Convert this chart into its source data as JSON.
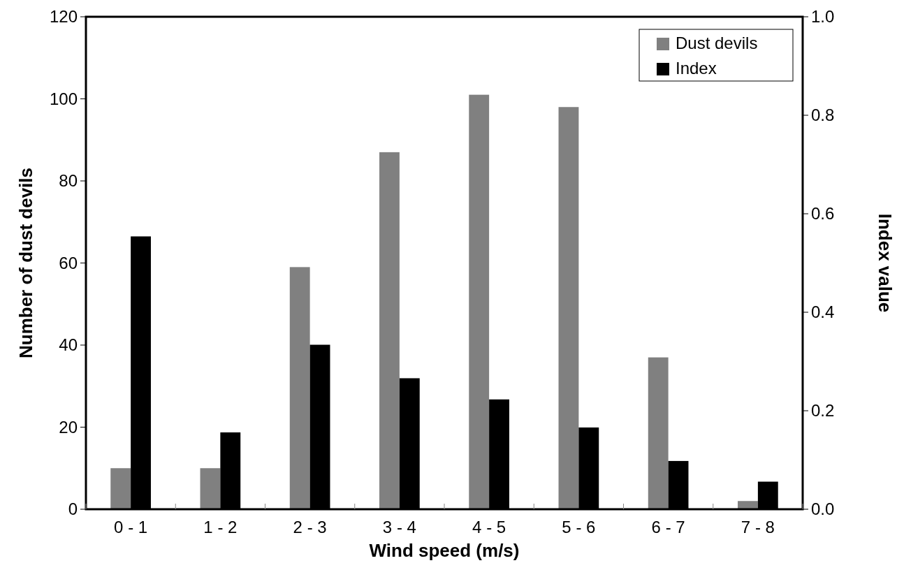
{
  "chart_data": {
    "type": "bar",
    "xlabel": "Wind speed (m/s)",
    "ylabel": "Number of dust devils",
    "y2label": "Index value",
    "categories": [
      "0 - 1",
      "1 - 2",
      "2 - 3",
      "3 - 4",
      "4 - 5",
      "5 - 6",
      "6 - 7",
      "7 - 8"
    ],
    "series": [
      {
        "name": "Dust devils",
        "color": "#808080",
        "values": [
          10,
          10,
          59,
          87,
          101,
          98,
          37,
          2
        ]
      },
      {
        "name": "Index",
        "color": "#000000",
        "axis": "y2",
        "values": [
          0.554,
          0.156,
          0.334,
          0.266,
          0.223,
          0.166,
          0.098,
          0.056
        ]
      }
    ],
    "ylim": [
      0,
      120
    ],
    "yticks": [
      0,
      20,
      40,
      60,
      80,
      100,
      120
    ],
    "y2lim": [
      0,
      1
    ],
    "y2ticks": [
      {
        "value": 0,
        "label": "0.0"
      },
      {
        "value": 0.2,
        "label": "0.2"
      },
      {
        "value": 0.4,
        "label": "0.4"
      },
      {
        "value": 0.6,
        "label": "0.6"
      },
      {
        "value": 0.8,
        "label": "0.8"
      },
      {
        "value": 1,
        "label": "1.0"
      }
    ],
    "grid": false,
    "legend": "top right"
  }
}
